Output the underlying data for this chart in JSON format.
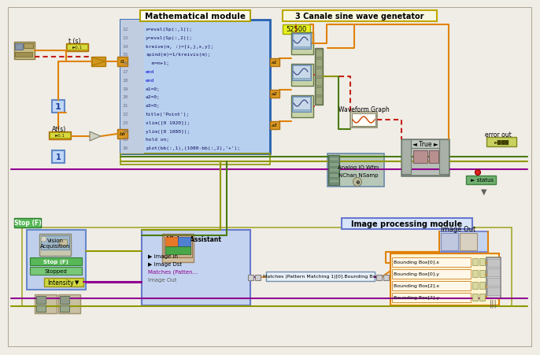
{
  "bg_color": "#f0ede6",
  "border_color": "#b0a898",
  "math_module_label": "Mathematical module",
  "sine_wave_label": "3 Canale sine wave genetator",
  "image_proc_label": "Image processing module",
  "waveform_label": "Waveform Graph",
  "analog_label": "Analog IO Wfm\nNChan NSamp",
  "error_out_label": "error out",
  "vision_acq_label": "Vision\nAcquisition",
  "image_out_label": "Image Out",
  "intensity_label": "Intensity",
  "status_label": "status",
  "t_label": "t (s)",
  "at_label": "At(s)",
  "stop_label": "Stop (F)",
  "true_label": "True",
  "value_52500": "52500",
  "code_lines": [
    [
      "12",
      "x=eval(Sp(:,1));",
      false
    ],
    [
      "13",
      "y=eval(Sp(:,2));",
      false
    ],
    [
      "14",
      "kreive(m, :)=[i,j,x,y];",
      false
    ],
    [
      "15",
      "spind(m)=1/kreivis(m);",
      false
    ],
    [
      "16",
      "  m=m+1;",
      false
    ],
    [
      "17",
      "end",
      true
    ],
    [
      "18",
      "end",
      true
    ],
    [
      "19",
      "a1=0;",
      false
    ],
    [
      "20",
      "a2=0;",
      false
    ],
    [
      "21",
      "a3=0;",
      false
    ],
    [
      "22",
      "title('Point');",
      false
    ],
    [
      "23",
      "xlim([0 1920]);",
      false
    ],
    [
      "24",
      "ylim([0 1080]);",
      false
    ],
    [
      "25",
      "hold on;",
      false
    ],
    [
      "26",
      "plot(bb(:,1),(1080-bb(:,2),'+');",
      false
    ]
  ],
  "bounding_labels": [
    "Bounding Box[0].x",
    "Bounding Box[0].y",
    "Bounding Box[2].x",
    "Bounding Box[2].y"
  ],
  "matches_label": "Matches (Pattern Matching 1)[0].Bounding Box",
  "colors": {
    "oc": "#e0820a",
    "rc": "#c42018",
    "gc": "#4a7a10",
    "pc": "#900090",
    "ygc": "#909800",
    "drc": "#8b3a3a",
    "math_fill": "#b8d0ef",
    "math_border": "#2860b0",
    "math_lineno": "#9090a8",
    "sine_fill": "#f8f8e0",
    "sine_border": "#c0a800",
    "img_proc_fill": "#d8e4f8",
    "img_proc_border": "#6878d0",
    "bb_fill": "#fff4d0",
    "bb_border": "#e08000",
    "vacq_fill": "#c0d0ec",
    "vacq_border": "#6888cc",
    "vasst_fill": "#c4d4f0",
    "vasst_border": "#6878cc",
    "orange_node": "#d89820",
    "yel_ind": "#d8d840",
    "grn_ind": "#58b858",
    "true_fill": "#b8c0b8",
    "true_border": "#707870",
    "err_fill": "#c8d060",
    "wfm_fill": "#e0dcc8",
    "analog_fill": "#b8c8b8",
    "white": "#ffffff",
    "lt_gray": "#d0d0d0",
    "channel_fill": "#c8d4a8",
    "channel_border": "#687848"
  }
}
